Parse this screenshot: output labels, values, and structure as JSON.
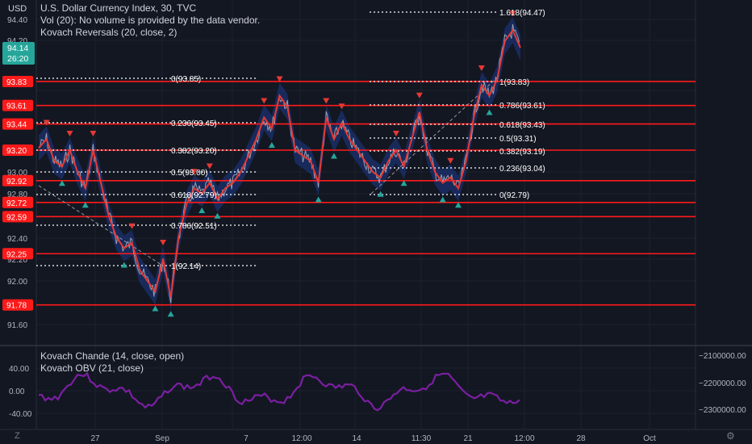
{
  "header": {
    "currency": "USD",
    "title": "U.S. Dollar Currency Index, 30, TVC",
    "vol": "Vol (20): No volume is provided by the data vendor.",
    "indicator": "Kovach Reversals (20, close, 2)"
  },
  "price_axis": {
    "ticks": [
      "94.40",
      "94.20",
      "93.00",
      "92.80",
      "92.40",
      "92.20",
      "92.00",
      "91.60"
    ],
    "current_price": "94.14",
    "countdown": "26:20",
    "level_tags": [
      "93.83",
      "93.61",
      "93.44",
      "93.20",
      "92.92",
      "92.72",
      "92.59",
      "92.25",
      "91.78"
    ],
    "current_color": "#26a69a",
    "level_color": "#ff1a1a"
  },
  "fib_left": {
    "labels": [
      "0(93.85)",
      "0.236(93.45)",
      "0.382(93.20)",
      "0.5(93.00)",
      "0.618(92.79)",
      "0.786(92.51)",
      "1(92.14)"
    ]
  },
  "fib_right": {
    "labels": [
      "1.618(94.47)",
      "1(93.83)",
      "0.786(93.61)",
      "0.618(93.43)",
      "0.5(93.31)",
      "0.382(93.19)",
      "0.236(93.04)",
      "0(92.79)"
    ]
  },
  "time_axis": {
    "labels": [
      "27",
      "Sep",
      "7",
      "12:00",
      "14",
      "11:30",
      "21",
      "12:00",
      "28",
      "Oct"
    ]
  },
  "lower_pane": {
    "indicator1": "Kovach Chande (14, close, open)",
    "indicator2": "Kovach OBV (21, close)",
    "left_ticks": [
      "40.00",
      "0.00",
      "-40.00"
    ],
    "right_ticks": [
      "−2100000.00",
      "−2200000.00",
      "−2300000.00"
    ],
    "line_color": "#7b1fa2"
  },
  "chart_data": {
    "type": "line",
    "title": "U.S. Dollar Currency Index, 30, TVC",
    "ylim": [
      91.55,
      94.5
    ],
    "horizontal_levels": [
      93.83,
      93.61,
      93.44,
      93.2,
      92.92,
      92.72,
      92.59,
      92.25,
      91.78
    ],
    "series": [
      {
        "values": [
          93.22,
          93.3,
          93.1,
          93.05,
          93.2,
          93.0,
          92.85,
          93.2,
          92.9,
          92.6,
          92.4,
          92.3,
          92.35,
          92.1,
          92.0,
          91.9,
          92.2,
          91.85,
          92.4,
          92.7,
          92.85,
          92.8,
          92.9,
          92.75,
          92.85,
          92.9,
          93.0,
          93.15,
          93.3,
          93.5,
          93.4,
          93.7,
          93.6,
          93.2,
          93.15,
          93.1,
          92.9,
          93.5,
          93.3,
          93.45,
          93.3,
          93.2,
          93.1,
          93.0,
          92.95,
          93.1,
          93.2,
          93.05,
          93.3,
          93.55,
          93.2,
          93.0,
          92.9,
          92.95,
          92.85,
          93.1,
          93.5,
          93.8,
          93.7,
          93.85,
          94.2,
          94.3,
          94.14
        ]
      }
    ]
  }
}
